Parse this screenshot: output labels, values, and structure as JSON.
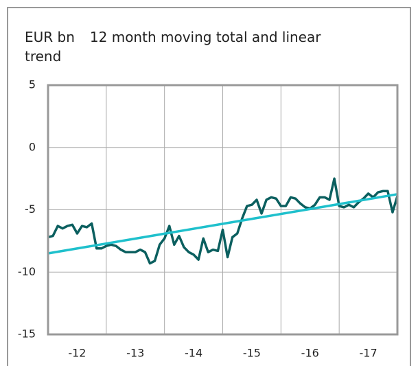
{
  "chart_data": {
    "type": "line",
    "y_label": "EUR bn",
    "title": "12 month moving total and linear trend",
    "xlim": [
      0,
      72
    ],
    "xticks": [
      {
        "value": 6,
        "label": "-12"
      },
      {
        "value": 18,
        "label": "-13"
      },
      {
        "value": 30,
        "label": "-14"
      },
      {
        "value": 42,
        "label": "-15"
      },
      {
        "value": 54,
        "label": "-16"
      },
      {
        "value": 66,
        "label": "-17"
      }
    ],
    "xgrid": [
      12,
      24,
      36,
      48,
      60
    ],
    "ylim": [
      -15,
      5
    ],
    "yticks": [
      -15,
      -10,
      -5,
      0,
      5
    ],
    "grid": true,
    "series": [
      {
        "color": "#0b5f5f",
        "x": [
          0,
          1,
          2,
          3,
          4,
          5,
          6,
          7,
          8,
          9,
          10,
          11,
          12,
          13,
          14,
          15,
          16,
          17,
          18,
          19,
          20,
          21,
          22,
          23,
          24,
          25,
          26,
          27,
          28,
          29,
          30,
          31,
          32,
          33,
          34,
          35,
          36,
          37,
          38,
          39,
          40,
          41,
          42,
          43,
          44,
          45,
          46,
          47,
          48,
          49,
          50,
          51,
          52,
          53,
          54,
          55,
          56,
          57,
          58,
          59,
          60,
          61,
          62,
          63,
          64,
          65,
          66,
          67,
          68,
          69,
          70,
          71,
          72
        ],
        "values": [
          -7.2,
          -7.1,
          -6.3,
          -6.5,
          -6.3,
          -6.2,
          -6.9,
          -6.3,
          -6.4,
          -6.1,
          -8.1,
          -8.1,
          -7.9,
          -7.8,
          -7.9,
          -8.2,
          -8.4,
          -8.4,
          -8.4,
          -8.2,
          -8.4,
          -9.3,
          -9.1,
          -7.8,
          -7.3,
          -6.3,
          -7.8,
          -7.1,
          -8.0,
          -8.4,
          -8.6,
          -9.0,
          -7.3,
          -8.4,
          -8.2,
          -8.3,
          -6.6,
          -8.8,
          -7.2,
          -6.9,
          -5.7,
          -4.7,
          -4.6,
          -4.2,
          -5.3,
          -4.2,
          -4.0,
          -4.1,
          -4.7,
          -4.7,
          -4.0,
          -4.1,
          -4.5,
          -4.8,
          -4.9,
          -4.6,
          -4.0,
          -4.0,
          -4.2,
          -2.5,
          -4.7,
          -4.8,
          -4.6,
          -4.8,
          -4.4,
          -4.1,
          -3.7,
          -4.0,
          -3.6,
          -3.5,
          -3.5,
          -5.2,
          -3.9
        ]
      },
      {
        "color": "#1fc0cc",
        "x": [
          0,
          72
        ],
        "values": [
          -8.5,
          -3.75
        ]
      }
    ]
  }
}
